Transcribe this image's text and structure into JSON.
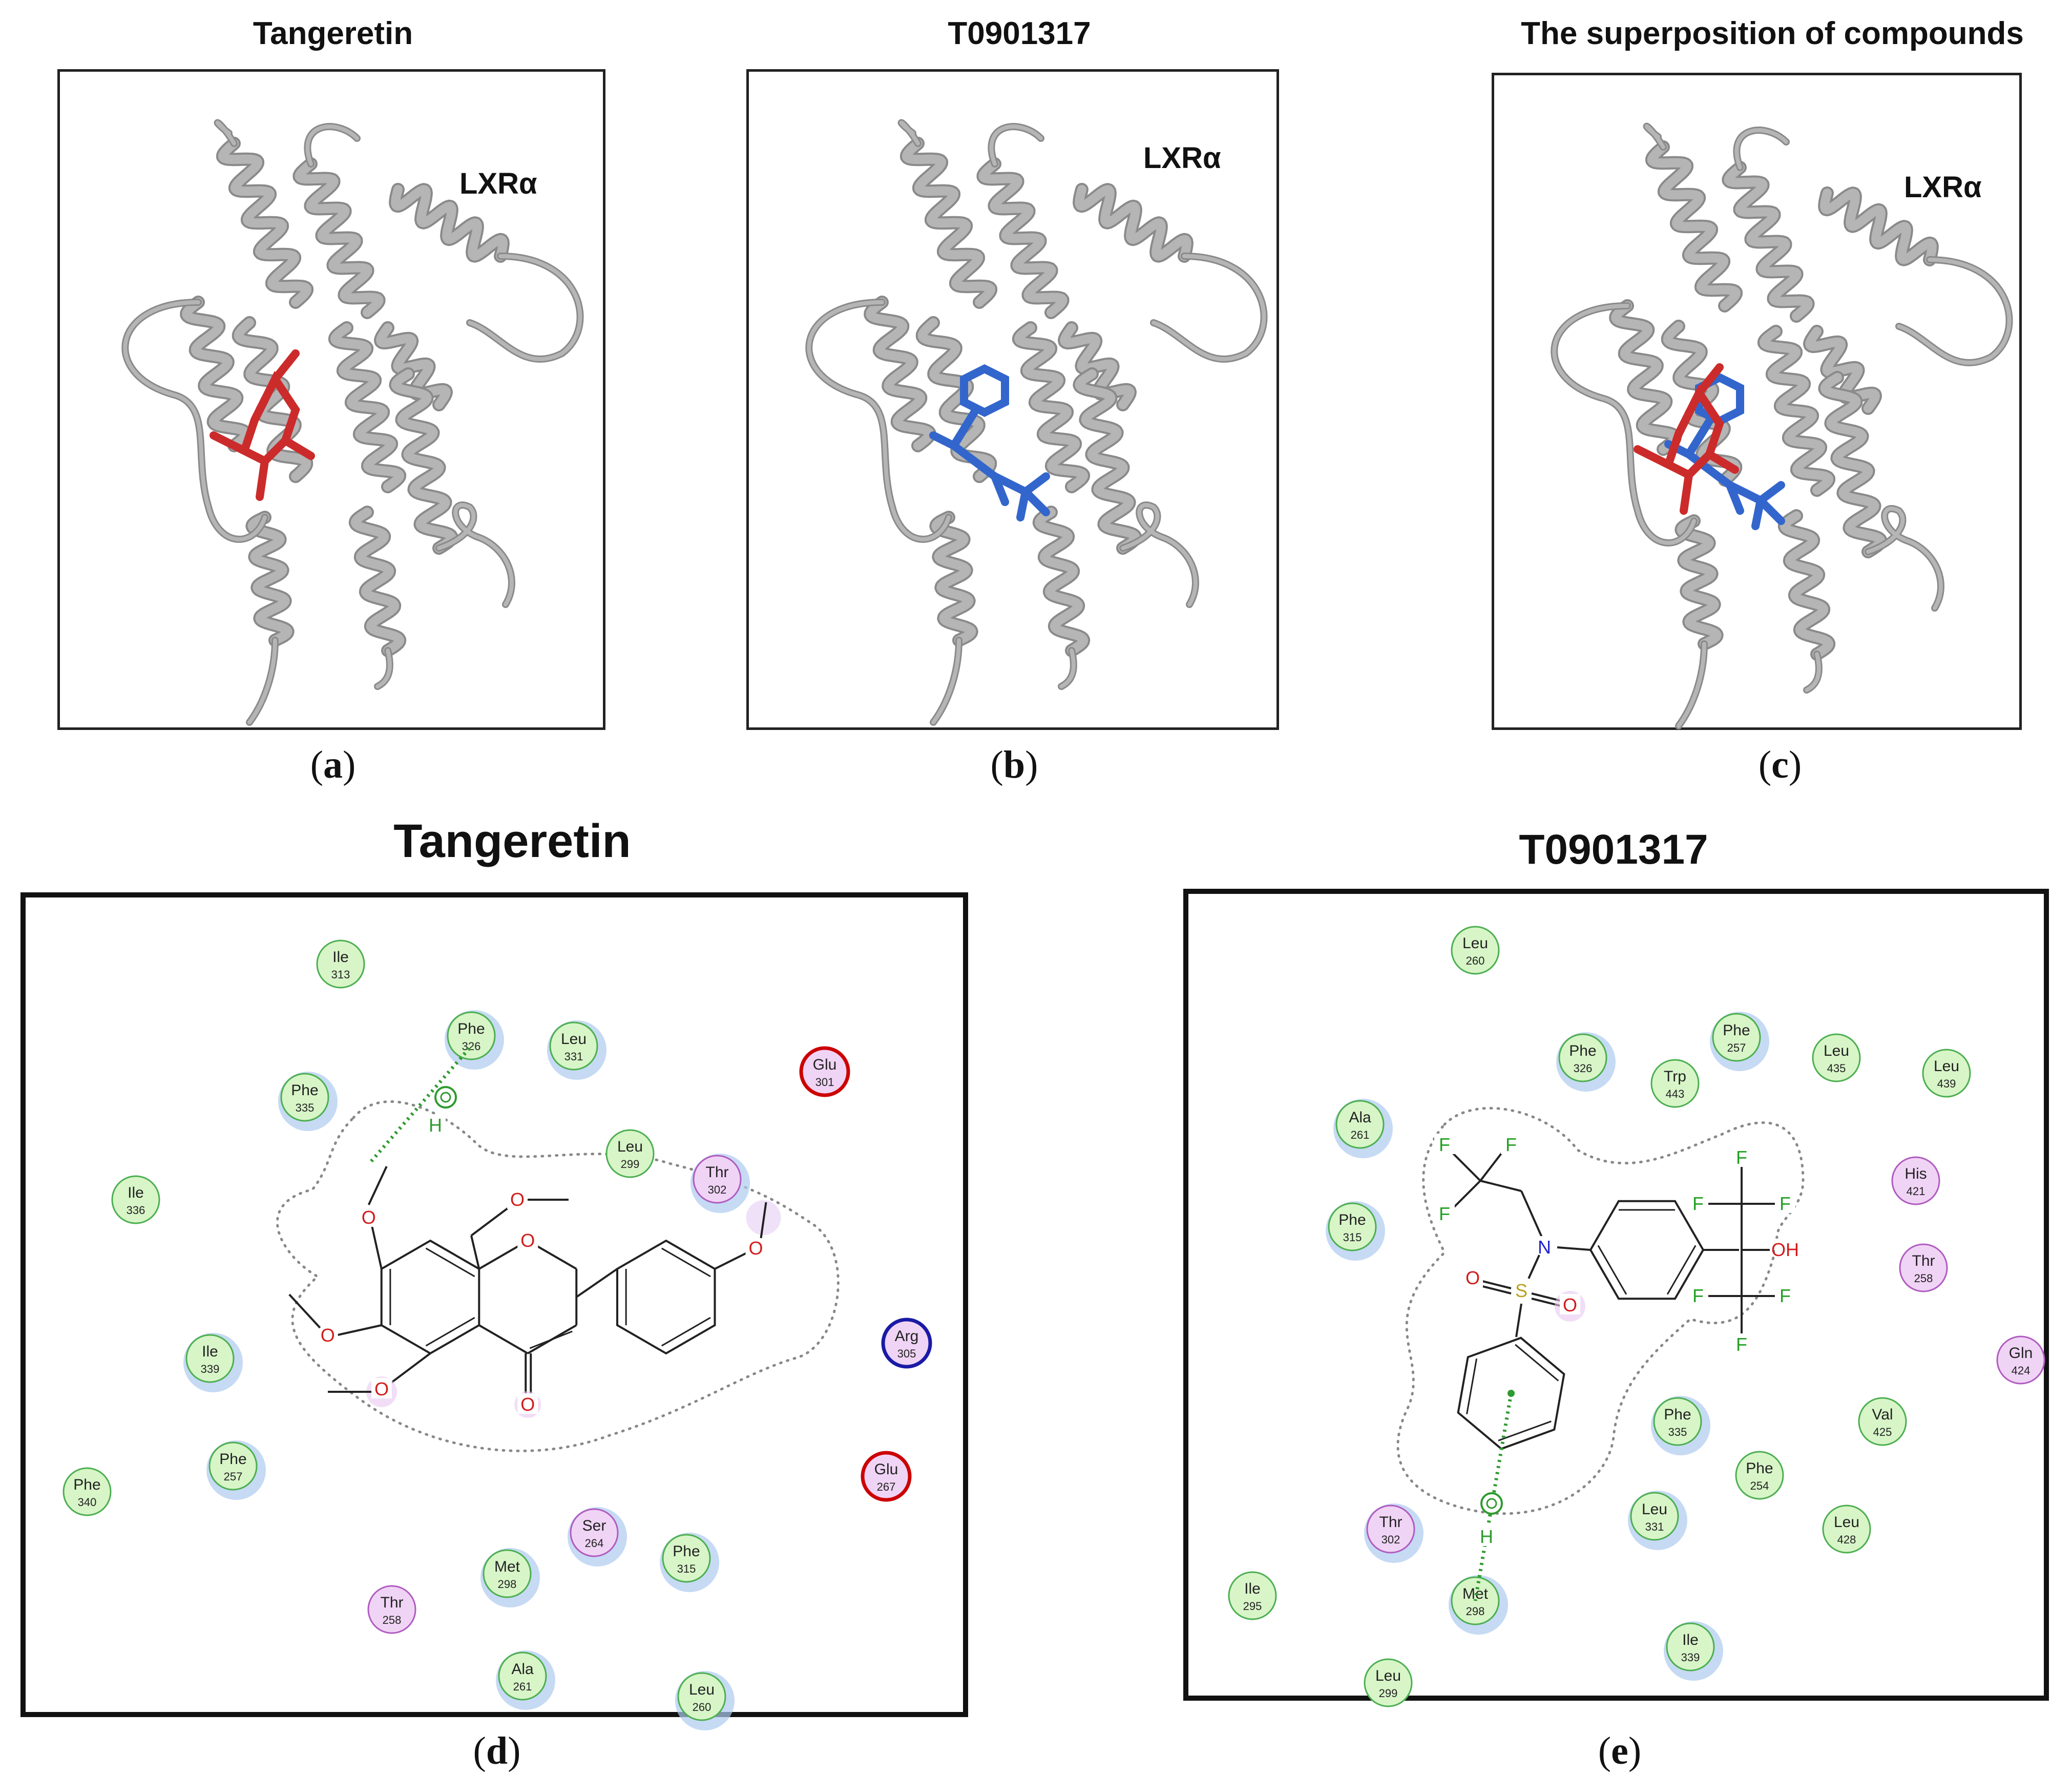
{
  "panels": [
    {
      "id": "a",
      "title": "Tangeretin",
      "protein_label": "LXRα",
      "caption": "a",
      "ligand_color": "#cc2b2b"
    },
    {
      "id": "b",
      "title": "T0901317",
      "protein_label": "LXRα",
      "caption": "b",
      "ligand_color": "#3366cc"
    },
    {
      "id": "c",
      "title": "The superposition of compounds",
      "protein_label": "LXRα",
      "caption": "c"
    }
  ],
  "interaction_panels": [
    {
      "id": "d",
      "title": "Tangeretin",
      "caption": "d",
      "residues": [
        {
          "name": "Ile",
          "num": "313",
          "type": "hydrophobic"
        },
        {
          "name": "Phe",
          "num": "326",
          "type": "hydrophobic"
        },
        {
          "name": "Leu",
          "num": "331",
          "type": "hydrophobic"
        },
        {
          "name": "Glu",
          "num": "301",
          "type": "acidic"
        },
        {
          "name": "Phe",
          "num": "335",
          "type": "hydrophobic"
        },
        {
          "name": "Leu",
          "num": "299",
          "type": "hydrophobic"
        },
        {
          "name": "Thr",
          "num": "302",
          "type": "polar"
        },
        {
          "name": "Ile",
          "num": "336",
          "type": "hydrophobic"
        },
        {
          "name": "Arg",
          "num": "305",
          "type": "basic"
        },
        {
          "name": "Ile",
          "num": "339",
          "type": "hydrophobic"
        },
        {
          "name": "Phe",
          "num": "340",
          "type": "hydrophobic"
        },
        {
          "name": "Phe",
          "num": "257",
          "type": "hydrophobic"
        },
        {
          "name": "Glu",
          "num": "267",
          "type": "acidic"
        },
        {
          "name": "Ser",
          "num": "264",
          "type": "polar"
        },
        {
          "name": "Phe",
          "num": "315",
          "type": "hydrophobic"
        },
        {
          "name": "Met",
          "num": "298",
          "type": "hydrophobic"
        },
        {
          "name": "Thr",
          "num": "258",
          "type": "polar"
        },
        {
          "name": "Ala",
          "num": "261",
          "type": "hydrophobic"
        },
        {
          "name": "Leu",
          "num": "260",
          "type": "hydrophobic"
        }
      ],
      "atoms": [
        "O",
        "O",
        "O",
        "O",
        "O",
        "O",
        "O",
        "H"
      ]
    },
    {
      "id": "e",
      "title": "T0901317",
      "caption": "e",
      "residues": [
        {
          "name": "Leu",
          "num": "260",
          "type": "hydrophobic"
        },
        {
          "name": "Phe",
          "num": "257",
          "type": "hydrophobic"
        },
        {
          "name": "Phe",
          "num": "326",
          "type": "hydrophobic"
        },
        {
          "name": "Trp",
          "num": "443",
          "type": "hydrophobic"
        },
        {
          "name": "Leu",
          "num": "435",
          "type": "hydrophobic"
        },
        {
          "name": "Leu",
          "num": "439",
          "type": "hydrophobic"
        },
        {
          "name": "Ala",
          "num": "261",
          "type": "hydrophobic"
        },
        {
          "name": "His",
          "num": "421",
          "type": "polar"
        },
        {
          "name": "Phe",
          "num": "315",
          "type": "hydrophobic"
        },
        {
          "name": "Thr",
          "num": "258",
          "type": "polar"
        },
        {
          "name": "Gln",
          "num": "424",
          "type": "polar"
        },
        {
          "name": "Phe",
          "num": "335",
          "type": "hydrophobic"
        },
        {
          "name": "Val",
          "num": "425",
          "type": "hydrophobic"
        },
        {
          "name": "Phe",
          "num": "254",
          "type": "hydrophobic"
        },
        {
          "name": "Thr",
          "num": "302",
          "type": "polar"
        },
        {
          "name": "Leu",
          "num": "331",
          "type": "hydrophobic"
        },
        {
          "name": "Leu",
          "num": "428",
          "type": "hydrophobic"
        },
        {
          "name": "Ile",
          "num": "295",
          "type": "hydrophobic"
        },
        {
          "name": "Met",
          "num": "298",
          "type": "hydrophobic"
        },
        {
          "name": "Ile",
          "num": "339",
          "type": "hydrophobic"
        },
        {
          "name": "Leu",
          "num": "299",
          "type": "hydrophobic"
        }
      ],
      "atoms": [
        "F",
        "F",
        "F",
        "N",
        "S",
        "O",
        "O",
        "F",
        "F",
        "F",
        "OH",
        "F",
        "F",
        "F",
        "H"
      ]
    }
  ],
  "colors": {
    "hydrophobic_fill": "#d8f5c8",
    "hydrophobic_stroke": "#4caf50",
    "polar_fill": "#f0d4f5",
    "polar_stroke": "#b05cc0",
    "acidic_stroke": "#cc0000",
    "basic_stroke": "#1a1aa6",
    "ribbon": "#b5b5b5",
    "tangeretin_ligand": "#cc2b2b",
    "t0901317_ligand": "#3366cc",
    "hbond": "#2e9b2e",
    "oxygen": "#d21b1b",
    "fluorine": "#22a022",
    "nitrogen": "#2222cc",
    "sulfur": "#b8a21c",
    "halo": "#aecbf0"
  }
}
